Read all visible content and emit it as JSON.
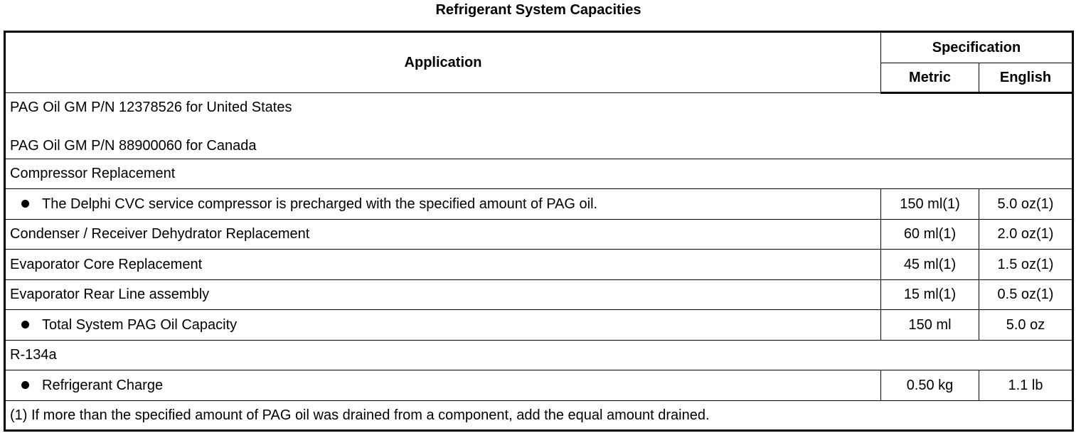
{
  "title": "Refrigerant System Capacities",
  "headers": {
    "application": "Application",
    "specification": "Specification",
    "metric": "Metric",
    "english": "English"
  },
  "pag_lines": [
    "PAG Oil GM P/N 12378526 for United States",
    "PAG Oil GM P/N 88900060 for Canada"
  ],
  "rows": [
    {
      "label": "Compressor Replacement",
      "bullet": false,
      "metric": "",
      "english": "",
      "span": true
    },
    {
      "label": "The Delphi CVC service compressor is precharged with the specified amount of PAG oil.",
      "bullet": true,
      "metric": "150 ml(1)",
      "english": "5.0 oz(1)"
    },
    {
      "label": "Condenser / Receiver Dehydrator Replacement",
      "bullet": false,
      "metric": "60 ml(1)",
      "english": "2.0 oz(1)"
    },
    {
      "label": "Evaporator Core Replacement",
      "bullet": false,
      "metric": "45 ml(1)",
      "english": "1.5 oz(1)"
    },
    {
      "label": "Evaporator Rear Line assembly",
      "bullet": false,
      "metric": "15 ml(1)",
      "english": "0.5 oz(1)"
    },
    {
      "label": "Total System PAG Oil Capacity",
      "bullet": true,
      "metric": "150 ml",
      "english": "5.0 oz"
    },
    {
      "label": "R-134a",
      "bullet": false,
      "metric": "",
      "english": "",
      "span": true
    },
    {
      "label": "Refrigerant Charge",
      "bullet": true,
      "metric": "0.50 kg",
      "english": "1.1 lb"
    }
  ],
  "footnote": "(1) If more than the specified amount of PAG oil was drained from a component, add the equal amount drained."
}
